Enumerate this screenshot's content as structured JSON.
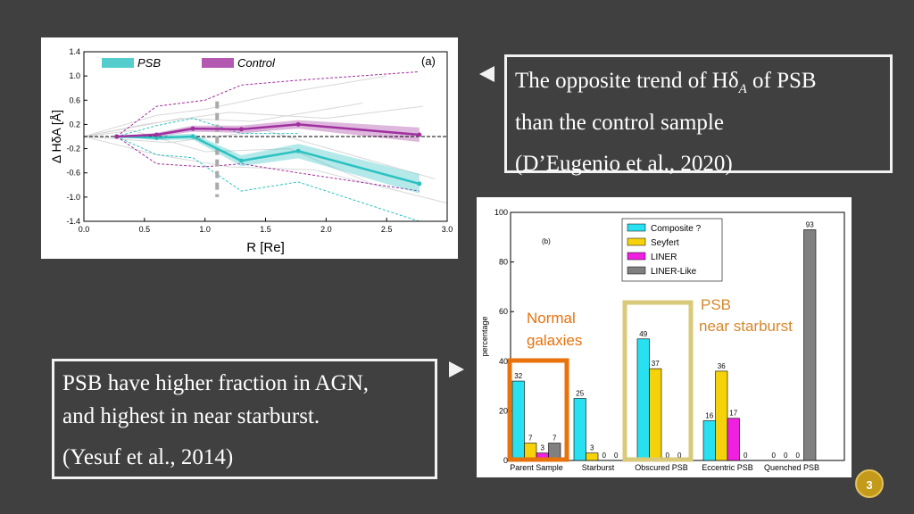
{
  "notes": {
    "top": {
      "line1": "The opposite trend of Hδ",
      "line1_sub": "A",
      "line1_end": " of PSB",
      "line2": "than the control sample",
      "ref": "(D’Eugenio et al., 2020)"
    },
    "bottom": {
      "line1": "PSB have higher fraction in AGN,",
      "line2": "and highest in near starburst.",
      "ref": "(Yesuf et al., 2014)"
    }
  },
  "page_number": "3",
  "colors": {
    "background": "#404040",
    "psb": "#2cc1c1",
    "control": "#a0309e",
    "highlight_orange": "#e8720c",
    "highlight_khaki": "#d9c97a"
  },
  "chart_data": [
    {
      "type": "line",
      "panel_label": "(a)",
      "xlabel": "R [Re]",
      "ylabel": "Δ HδA [Å]",
      "xlim": [
        0.0,
        3.0
      ],
      "ylim": [
        -1.4,
        1.4
      ],
      "xticks": [
        "0.0",
        "0.5",
        "1.0",
        "1.5",
        "2.0",
        "2.5",
        "3.0"
      ],
      "yticks": [
        "1.4",
        "1.0",
        "0.6",
        "0.2",
        "-0.2",
        "-0.6",
        "-1.0",
        "-1.4"
      ],
      "legend": [
        "PSB",
        "Control"
      ],
      "series": [
        {
          "name": "PSB",
          "x": [
            0.27,
            0.6,
            0.9,
            1.3,
            1.77,
            2.77
          ],
          "y": [
            0.0,
            -0.02,
            0.0,
            -0.4,
            -0.24,
            -0.78
          ]
        },
        {
          "name": "Control",
          "x": [
            0.27,
            0.6,
            0.9,
            1.3,
            1.77,
            2.77
          ],
          "y": [
            0.0,
            0.03,
            0.13,
            0.12,
            0.2,
            0.03
          ]
        }
      ]
    },
    {
      "type": "bar",
      "panel_label": "(b)",
      "ylabel": "percentage",
      "ylim": [
        0,
        100
      ],
      "yticks": [
        "0",
        "20",
        "40",
        "60",
        "80",
        "100"
      ],
      "categories": [
        "Parent Sample",
        "Starburst",
        "Obscured PSB",
        "Eccentric PSB",
        "Quenched PSB"
      ],
      "series": [
        {
          "name": "Composite ?",
          "color": "#28e0f0",
          "values": [
            32,
            25,
            49,
            16,
            0
          ]
        },
        {
          "name": "Seyfert",
          "color": "#f5d20a",
          "values": [
            7,
            3,
            37,
            36,
            0
          ]
        },
        {
          "name": "LINER",
          "color": "#f020e0",
          "values": [
            3,
            0,
            0,
            17,
            0
          ]
        },
        {
          "name": "LINER-Like",
          "color": "#808080",
          "values": [
            7,
            0,
            0,
            0,
            93
          ]
        }
      ],
      "annotations": {
        "normal": "Normal galaxies",
        "psb_line1": "PSB",
        "psb_line2": "near starburst"
      }
    }
  ]
}
